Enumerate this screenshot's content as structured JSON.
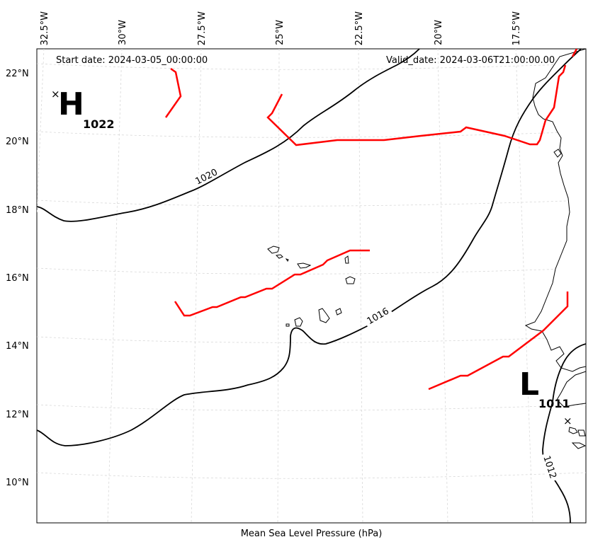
{
  "header": {
    "start_date": "Start date: 2024-03-05_00:00:00",
    "valid_date": "Valid_date: 2024-03-06T21:00:00.00"
  },
  "axis": {
    "xlabel": "Mean Sea Level Pressure (hPa)",
    "longitude_ticks": [
      "32.5°W",
      "30°W",
      "27.5°W",
      "25°W",
      "22.5°W",
      "20°W",
      "17.5°W"
    ],
    "latitude_ticks": [
      "22°N",
      "20°N",
      "18°N",
      "16°N",
      "14°N",
      "12°N",
      "10°N"
    ]
  },
  "isobars": [
    {
      "label": "1020"
    },
    {
      "label": "1016"
    },
    {
      "label": "1012"
    }
  ],
  "pressure_systems": {
    "high": {
      "letter": "H",
      "value": "1022",
      "marker": "×"
    },
    "low": {
      "letter": "L",
      "value": "1011",
      "marker": "×"
    }
  },
  "colors": {
    "isobar": "#000000",
    "front": "#ff0000",
    "grid": "#d0d0d0",
    "coastline": "#000000"
  }
}
